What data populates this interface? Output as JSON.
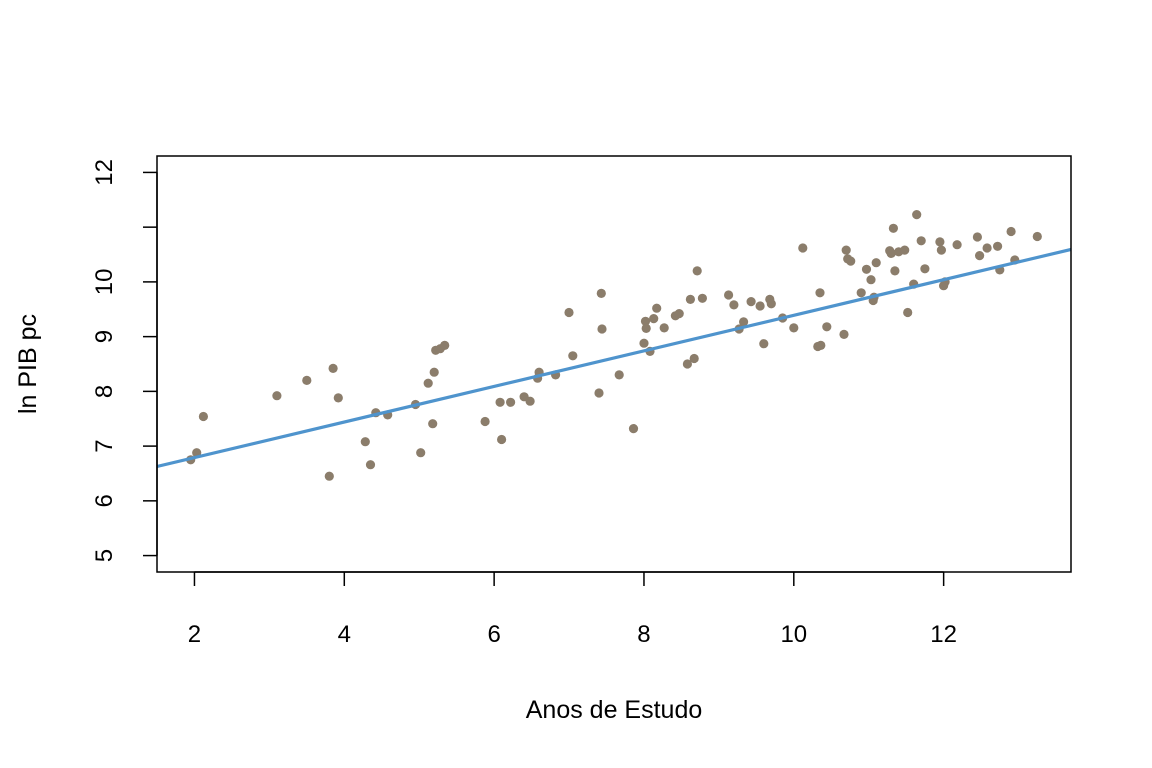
{
  "chart_data": {
    "type": "scatter",
    "xlabel": "Anos de Estudo",
    "ylabel": "ln PIB pc",
    "xlim": [
      1.5,
      13.7
    ],
    "ylim": [
      4.7,
      12.3
    ],
    "x_ticks": [
      2,
      4,
      6,
      8,
      10,
      12
    ],
    "y_ticks": [
      5,
      6,
      7,
      8,
      9,
      10,
      11,
      12
    ],
    "y_tick_labels": [
      "5",
      "6",
      "7",
      "8",
      "9",
      "10",
      "",
      "12"
    ],
    "grid": false,
    "colors": {
      "points": "#8B7D6B",
      "fit_line": "#4F94CD",
      "frame": "#000000"
    },
    "fit_line": {
      "intercept": 6.14,
      "slope": 0.325
    },
    "points": [
      [
        1.95,
        6.75
      ],
      [
        2.03,
        6.88
      ],
      [
        2.12,
        7.54
      ],
      [
        3.1,
        7.92
      ],
      [
        3.5,
        8.2
      ],
      [
        3.8,
        6.45
      ],
      [
        3.85,
        8.42
      ],
      [
        3.92,
        7.88
      ],
      [
        4.28,
        7.08
      ],
      [
        4.35,
        6.66
      ],
      [
        4.42,
        7.61
      ],
      [
        4.58,
        7.57
      ],
      [
        4.95,
        7.76
      ],
      [
        5.02,
        6.88
      ],
      [
        5.12,
        8.15
      ],
      [
        5.18,
        7.41
      ],
      [
        5.2,
        8.35
      ],
      [
        5.22,
        8.75
      ],
      [
        5.28,
        8.78
      ],
      [
        5.34,
        8.84
      ],
      [
        5.88,
        7.45
      ],
      [
        6.08,
        7.8
      ],
      [
        6.1,
        7.12
      ],
      [
        6.22,
        7.8
      ],
      [
        6.4,
        7.9
      ],
      [
        6.48,
        7.82
      ],
      [
        6.58,
        8.24
      ],
      [
        6.6,
        8.35
      ],
      [
        6.82,
        8.3
      ],
      [
        7.0,
        9.44
      ],
      [
        7.05,
        8.65
      ],
      [
        7.4,
        7.97
      ],
      [
        7.43,
        9.79
      ],
      [
        7.44,
        9.14
      ],
      [
        7.67,
        8.3
      ],
      [
        7.86,
        7.32
      ],
      [
        8.0,
        8.88
      ],
      [
        8.02,
        9.28
      ],
      [
        8.03,
        9.15
      ],
      [
        8.08,
        8.73
      ],
      [
        8.13,
        9.33
      ],
      [
        8.17,
        9.52
      ],
      [
        8.27,
        9.16
      ],
      [
        8.42,
        9.38
      ],
      [
        8.47,
        9.42
      ],
      [
        8.58,
        8.5
      ],
      [
        8.62,
        9.68
      ],
      [
        8.67,
        8.6
      ],
      [
        8.71,
        10.2
      ],
      [
        8.78,
        9.7
      ],
      [
        9.13,
        9.76
      ],
      [
        9.2,
        9.58
      ],
      [
        9.27,
        9.14
      ],
      [
        9.33,
        9.27
      ],
      [
        9.43,
        9.64
      ],
      [
        9.55,
        9.56
      ],
      [
        9.6,
        8.87
      ],
      [
        9.68,
        9.68
      ],
      [
        9.7,
        9.6
      ],
      [
        9.85,
        9.34
      ],
      [
        10.0,
        9.16
      ],
      [
        10.12,
        10.62
      ],
      [
        10.32,
        8.82
      ],
      [
        10.35,
        9.8
      ],
      [
        10.36,
        8.84
      ],
      [
        10.44,
        9.18
      ],
      [
        10.67,
        9.04
      ],
      [
        10.7,
        10.58
      ],
      [
        10.72,
        10.42
      ],
      [
        10.76,
        10.38
      ],
      [
        10.9,
        9.8
      ],
      [
        10.97,
        10.23
      ],
      [
        11.03,
        10.04
      ],
      [
        11.06,
        9.66
      ],
      [
        11.07,
        9.72
      ],
      [
        11.1,
        10.35
      ],
      [
        11.28,
        10.57
      ],
      [
        11.3,
        10.52
      ],
      [
        11.33,
        10.98
      ],
      [
        11.35,
        10.2
      ],
      [
        11.4,
        10.55
      ],
      [
        11.48,
        10.58
      ],
      [
        11.52,
        9.44
      ],
      [
        11.6,
        9.96
      ],
      [
        11.64,
        11.23
      ],
      [
        11.7,
        10.75
      ],
      [
        11.75,
        10.24
      ],
      [
        11.95,
        10.73
      ],
      [
        11.97,
        10.58
      ],
      [
        12.0,
        9.93
      ],
      [
        12.02,
        10.0
      ],
      [
        12.18,
        10.68
      ],
      [
        12.45,
        10.82
      ],
      [
        12.48,
        10.48
      ],
      [
        12.58,
        10.62
      ],
      [
        12.72,
        10.65
      ],
      [
        12.75,
        10.22
      ],
      [
        12.9,
        10.92
      ],
      [
        12.95,
        10.4
      ],
      [
        13.25,
        10.83
      ]
    ]
  }
}
